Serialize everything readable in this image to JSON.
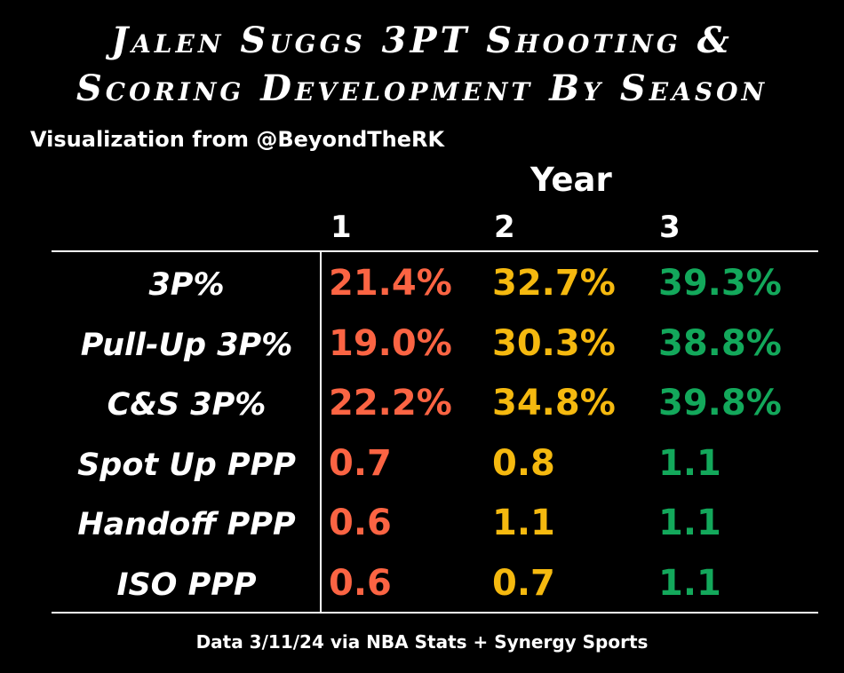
{
  "title_line_1": "Jalen Suggs 3PT Shooting &",
  "title_line_2": "Scoring Development By Season",
  "subtitle": "Visualization from @BeyondTheRK",
  "footer": "Data 3/11/24 via NBA Stats + Synergy Sports",
  "colors": {
    "year_1": "#fb6443",
    "year_2": "#f5b90f",
    "year_3": "#13a85b"
  },
  "chart_data": {
    "type": "table",
    "column_group_header": "Year",
    "columns": [
      "1",
      "2",
      "3"
    ],
    "rows": [
      {
        "label": "3P%",
        "values": [
          "21.4%",
          "32.7%",
          "39.3%"
        ]
      },
      {
        "label": "Pull-Up 3P%",
        "values": [
          "19.0%",
          "30.3%",
          "38.8%"
        ]
      },
      {
        "label": "C&S 3P%",
        "values": [
          "22.2%",
          "34.8%",
          "39.8%"
        ]
      },
      {
        "label": "Spot Up PPP",
        "values": [
          "0.7",
          "0.8",
          "1.1"
        ]
      },
      {
        "label": "Handoff PPP",
        "values": [
          "0.6",
          "1.1",
          "1.1"
        ]
      },
      {
        "label": "ISO PPP",
        "values": [
          "0.6",
          "0.7",
          "1.1"
        ]
      }
    ]
  }
}
